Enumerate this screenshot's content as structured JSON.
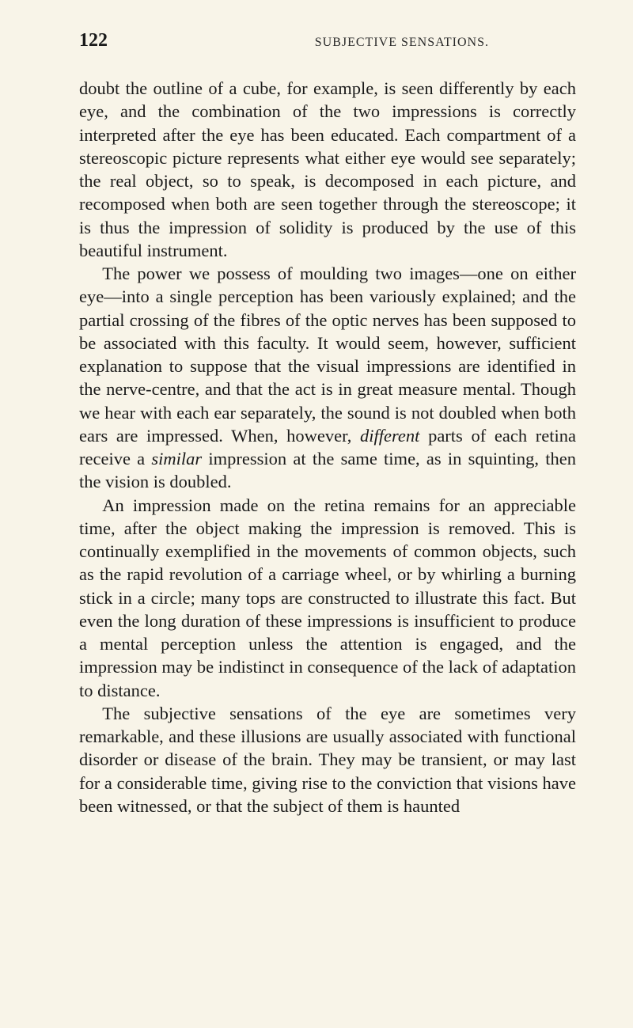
{
  "page": {
    "number": "122",
    "running_title": "SUBJECTIVE SENSATIONS.",
    "paragraphs": [
      {
        "class": "first",
        "html": "doubt the outline of a cube, for example, is seen differently by each eye, and the combination of the two impressions is correctly interpreted after the eye has been educated. Each compartment of a stereoscopic picture represents what either eye would see separately; the real object, so to speak, is decomposed in each picture, and recomposed when both are seen together through the stereoscope; it is thus the impression of solidity is produced by the use of this beautiful instrument."
      },
      {
        "class": "",
        "html": "The power we possess of moulding two images—one on either eye—into a single perception has been variously explained; and the partial crossing of the fibres of the optic nerves has been supposed to be associated with this faculty. It would seem, however, sufficient explanation to suppose that the visual impressions are identified in the nerve-centre, and that the act is in great measure mental. Though we hear with each ear separately, the sound is not doubled when both ears are impressed. When, however, <span class=\"italic\">different</span> parts of each retina receive a <span class=\"italic\">similar</span> impression at the same time, as in squinting, then the vision is doubled."
      },
      {
        "class": "",
        "html": "An impression made on the retina remains for an appreciable time, after the object making the impression is removed. This is continually exemplified in the movements of common objects, such as the rapid revolution of a carriage wheel, or by whirling a burning stick in a circle; many tops are constructed to illustrate this fact. But even the long duration of these impressions is insufficient to produce a mental perception unless the attention is engaged, and the impression may be indistinct in consequence of the lack of adaptation to distance."
      },
      {
        "class": "",
        "html": "The subjective sensations of the eye are sometimes very remarkable, and these illusions are usually associated with functional disorder or disease of the brain. They may be transient, or may last for a considerable time, giving rise to the conviction that visions have been witnessed, or that the subject of them is haunted"
      }
    ]
  },
  "colors": {
    "background": "#f8f4e8",
    "text": "#1a1a1a",
    "header_text": "#2a2a2a"
  },
  "typography": {
    "body_fontsize": 22.5,
    "body_lineheight": 1.3,
    "pagenum_fontsize": 24,
    "running_title_fontsize": 16
  }
}
